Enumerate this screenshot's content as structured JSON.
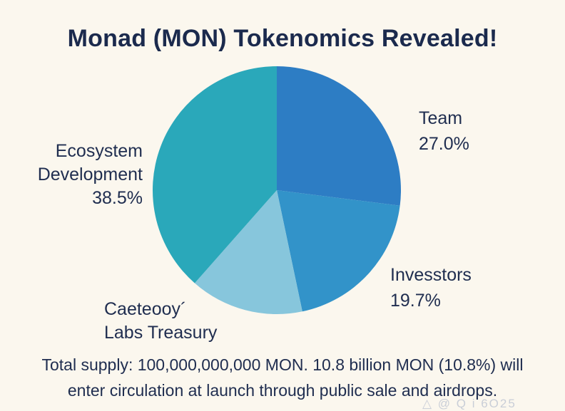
{
  "page": {
    "title": "Monad (MON) Tokenomics Revealed!"
  },
  "chart_data": {
    "type": "pie",
    "title": "Monad (MON) Tokenomics Revealed!",
    "start_angle_deg": 0,
    "direction": "clockwise",
    "legend_position": "none",
    "labels_outside": true,
    "slices": [
      {
        "label": "Team",
        "value": 27.0,
        "pct_label": "27.0%",
        "color": "#2D7DC4"
      },
      {
        "label": "Invesstors",
        "value": 19.7,
        "pct_label": "19.7%",
        "color": "#3293C9"
      },
      {
        "label": "Caeteooy´ Labs Treasury",
        "value": 14.8,
        "color": "#87C6DC"
      },
      {
        "label": "Ecosystem Development",
        "value": 38.5,
        "pct_label": "38.5%",
        "color": "#2AA8BA"
      }
    ]
  },
  "labels": {
    "team": {
      "line1": "Team",
      "line2": "27.0%"
    },
    "investors": {
      "line1": "Invesstors",
      "line2": "19.7%"
    },
    "treasury": {
      "line1": "Caeteooy´",
      "line2": "Labs Treasury"
    },
    "ecosystem": {
      "line1": "Ecosystem",
      "line2": "Development",
      "line3": "38.5%"
    }
  },
  "footer": {
    "line1": "Total supply: 100,000,000,000 MON. 10.8 billion MON (10.8%) will",
    "line2": "enter circulation at launch through public sale and airdrops."
  },
  "watermark": "△ @ Q i 6O25",
  "colors": {
    "background": "#FBF7EE",
    "title_text": "#1B2A4D",
    "body_text": "#202E50"
  }
}
